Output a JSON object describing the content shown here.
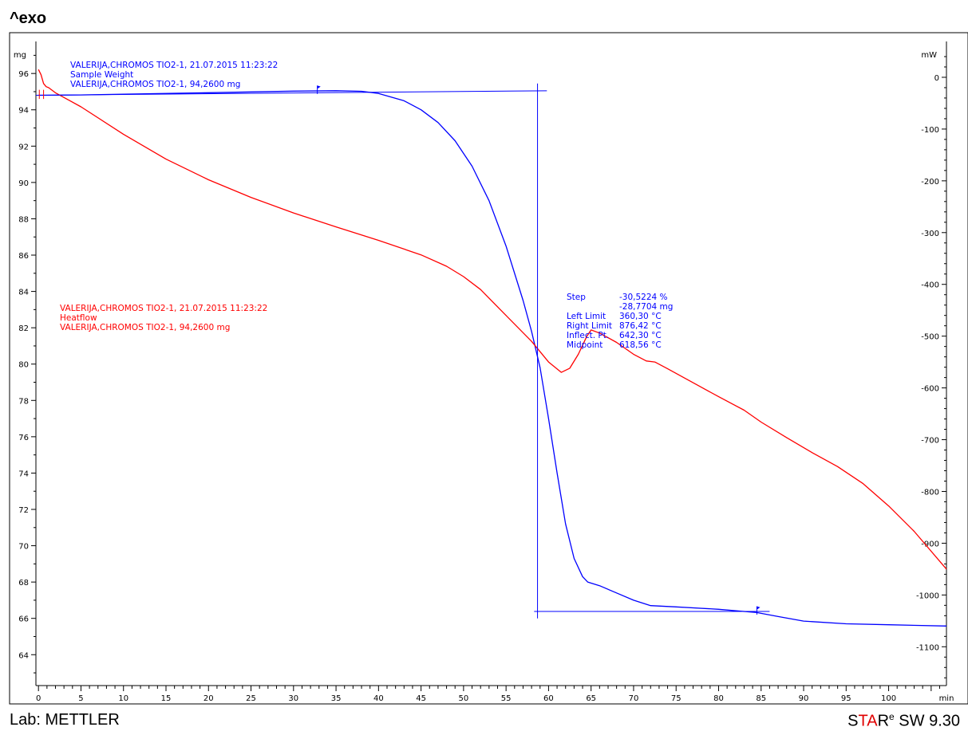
{
  "header": {
    "exo_label": "^exo"
  },
  "footer": {
    "lab": "Lab: METTLER",
    "software_a": "S",
    "software_b": "TA",
    "software_c": "R",
    "software_e": "e",
    "software_rest": " SW 9.30"
  },
  "chart_data": {
    "type": "line",
    "title": "",
    "xlabel": "min",
    "ylabel_left": "mg",
    "ylabel_right": "mW",
    "xlim": [
      -0.3,
      106.8
    ],
    "ylim_left": [
      62.3,
      97.5
    ],
    "ylim_right": [
      -1175,
      60
    ],
    "x_ticks": [
      0,
      5,
      10,
      15,
      20,
      25,
      30,
      35,
      40,
      45,
      50,
      55,
      60,
      65,
      70,
      75,
      80,
      85,
      90,
      95,
      100
    ],
    "y_left_ticks": [
      64,
      66,
      68,
      70,
      72,
      74,
      76,
      78,
      80,
      82,
      84,
      86,
      88,
      90,
      92,
      94,
      96
    ],
    "y_right_ticks": [
      0,
      -100,
      -200,
      -300,
      -400,
      -500,
      -600,
      -700,
      -800,
      -900,
      -1000,
      -1100
    ],
    "colors": {
      "weight": "#0000ff",
      "heatflow": "#ff0000",
      "frame": "#000000"
    },
    "series": [
      {
        "axis": "left",
        "color": "#0000ff",
        "x": [
          0,
          5,
          10,
          20,
          30,
          35,
          38,
          40,
          43,
          45,
          47,
          49,
          51,
          53,
          55,
          57,
          58,
          59,
          60,
          61,
          62,
          63,
          64,
          64.6,
          66,
          68,
          70,
          72,
          75,
          80,
          84.5,
          87,
          90,
          95,
          100,
          106.8
        ],
        "y": [
          94.8,
          94.82,
          94.86,
          94.94,
          95.03,
          95.05,
          95.02,
          94.9,
          94.5,
          94.0,
          93.3,
          92.3,
          90.9,
          89.0,
          86.5,
          83.5,
          81.8,
          79.8,
          77.0,
          74.0,
          71.2,
          69.3,
          68.3,
          68.0,
          67.8,
          67.4,
          67.0,
          66.7,
          66.63,
          66.5,
          66.32,
          66.1,
          65.85,
          65.7,
          65.65,
          65.58
        ]
      },
      {
        "axis": "right",
        "color": "#ff0000",
        "x": [
          0,
          0.3,
          0.6,
          0.9,
          1.2,
          2,
          5,
          10,
          15,
          20,
          25,
          30,
          35,
          40,
          45,
          48,
          50,
          52,
          55,
          58,
          60,
          61.5,
          62.5,
          63.5,
          64.5,
          65,
          66,
          68,
          70,
          71.5,
          72.5,
          74,
          77,
          80,
          83,
          85,
          88,
          91,
          94,
          97,
          100,
          103,
          106.8
        ],
        "y": [
          15,
          5,
          -12,
          -18,
          -20,
          -30,
          -57,
          -110,
          -158,
          -198,
          -232,
          -262,
          -289,
          -315,
          -343,
          -365,
          -385,
          -410,
          -460,
          -510,
          -550,
          -570,
          -562,
          -535,
          -500,
          -488,
          -494,
          -512,
          -535,
          -548,
          -550,
          -563,
          -590,
          -617,
          -643,
          -666,
          -696,
          -725,
          -752,
          -785,
          -828,
          -877,
          -950
        ]
      }
    ],
    "annotations": [
      {
        "color": "#0000ff",
        "lines": [
          "VALERIJA,CHROMOS TIO2-1, 21.07.2015 11:23:22",
          "Sample Weight",
          "VALERIJA,CHROMOS TIO2-1, 94,2600 mg"
        ]
      },
      {
        "color": "#ff0000",
        "lines": [
          "VALERIJA,CHROMOS TIO2-1, 21.07.2015 11:23:22",
          "Heatflow",
          "VALERIJA,CHROMOS TIO2-1, 94,2600 mg"
        ]
      }
    ],
    "step_evaluation": {
      "labels": [
        "Step",
        "",
        "Left Limit",
        "Right Limit",
        "Inflect. Pt.",
        "Midpoint"
      ],
      "values": [
        "-30,5224 %",
        "-28,7704 mg",
        "360,30 °C",
        "876,42 °C",
        "642,30 °C",
        "618,56 °C"
      ],
      "upper_level_mg": 95.05,
      "lower_level_mg": 66.38,
      "inflection_x_min": 58.7,
      "left_limit_x_min": 32.8,
      "right_limit_x_min": 84.5
    }
  }
}
